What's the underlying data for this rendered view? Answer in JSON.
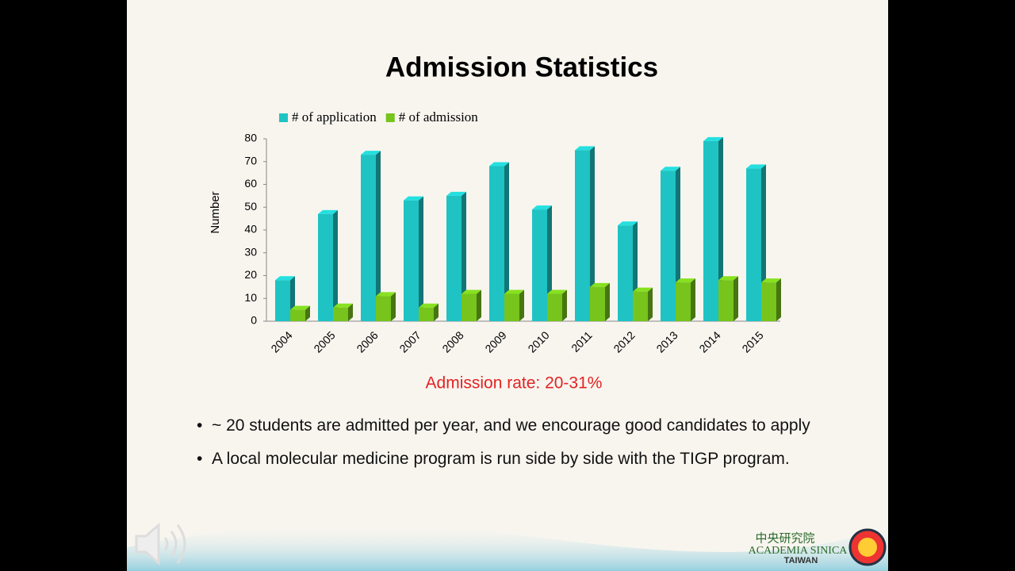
{
  "chart_data": {
    "type": "bar",
    "title": "Admission Statistics",
    "y_label": "Number",
    "categories": [
      "2004",
      "2005",
      "2006",
      "2007",
      "2008",
      "2009",
      "2010",
      "2011",
      "2012",
      "2013",
      "2014",
      "2015"
    ],
    "series": [
      {
        "name": "# of application",
        "color": "#1fc3c3",
        "values": [
          18,
          47,
          73,
          53,
          55,
          68,
          49,
          75,
          42,
          66,
          79,
          67
        ]
      },
      {
        "name": "# of admission",
        "color": "#76c41c",
        "values": [
          5,
          6,
          11,
          6,
          12,
          12,
          12,
          15,
          13,
          17,
          18,
          17
        ]
      }
    ],
    "ylim": [
      0,
      80
    ],
    "yticks": [
      0,
      10,
      20,
      30,
      40,
      50,
      60,
      70,
      80
    ],
    "grid": false,
    "legend": "top"
  },
  "annotation": "Admission rate: 20-31%",
  "bullets": [
    "~ 20 students are admitted per year, and we encourage good candidates to apply",
    "A local molecular medicine program is run side by side with the TIGP program."
  ],
  "logo": {
    "chinese": "中央研究院",
    "name": "ACADEMIA SINICA",
    "place": "TAIWAN"
  }
}
